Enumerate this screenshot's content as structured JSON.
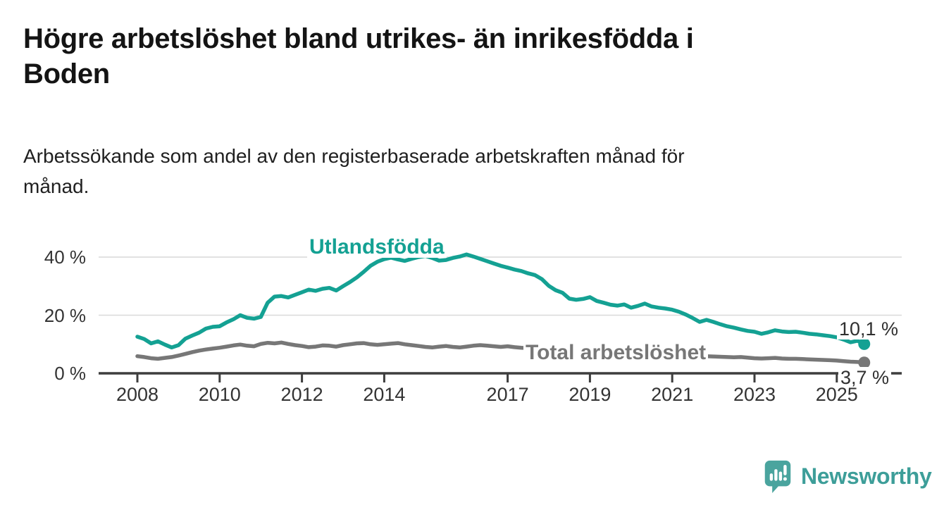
{
  "header": {
    "title": "Högre arbetslöshet bland utrikes- än inrikesfödda i Boden",
    "title_lines": [
      "Högre arbetslöshet bland utrikes- än inrikesfödda i",
      "Boden"
    ],
    "subtitle": "Arbetssökande som andel av den registerbaserade arbetskraften månad för månad.",
    "subtitle_lines": [
      "Arbetssökande som andel av den registerbaserade arbetskraften månad för",
      "månad."
    ]
  },
  "footer": {
    "logo_text": "Newsworthy",
    "logo_color": "#3d9e99",
    "logo_bubble_color": "#4aa49e"
  },
  "chart_data": {
    "type": "line",
    "title": "Högre arbetslöshet bland utrikes- än inrikesfödda i Boden",
    "subtitle": "Arbetssökande som andel av den registerbaserade arbetskraften månad för månad.",
    "unit": "%",
    "grid": "horizontal",
    "x_axis": {
      "start_year": 2008.0,
      "step_years": 0.16667,
      "end_year": 2025.67,
      "ticks": [
        2008,
        2010,
        2012,
        2014,
        2017,
        2019,
        2021,
        2023,
        2025
      ]
    },
    "y_axis": {
      "min": 0,
      "max": 44,
      "ticks": [
        {
          "value": 0,
          "label": "0 %"
        },
        {
          "value": 20,
          "label": "20 %"
        },
        {
          "value": 40,
          "label": "40 %"
        }
      ]
    },
    "style": {
      "background": "#ffffff",
      "axis_color": "#3d3d3d",
      "grid_color": "#d9d9d9",
      "tick_label_color": "#333333",
      "value_label_color": "#303030"
    },
    "series": [
      {
        "name": "Utlandsfödda",
        "color": "#14a193",
        "end_label": "10,1 %",
        "end_value": 10.1,
        "values": [
          12.6,
          11.8,
          10.3,
          11.0,
          9.9,
          8.9,
          9.7,
          11.9,
          13.0,
          14.0,
          15.4,
          16.0,
          16.2,
          17.5,
          18.6,
          20.0,
          19.1,
          18.8,
          19.4,
          24.3,
          26.4,
          26.6,
          26.1,
          27.0,
          27.9,
          28.8,
          28.4,
          29.1,
          29.4,
          28.5,
          30.0,
          31.4,
          33.0,
          34.9,
          37.0,
          38.4,
          39.3,
          39.8,
          39.2,
          38.7,
          39.4,
          40.0,
          40.4,
          39.7,
          38.8,
          39.0,
          39.7,
          40.2,
          40.9,
          40.2,
          39.4,
          38.6,
          37.8,
          37.0,
          36.4,
          35.7,
          35.2,
          34.4,
          33.8,
          32.4,
          30.1,
          28.6,
          27.7,
          25.7,
          25.3,
          25.6,
          26.2,
          24.9,
          24.3,
          23.6,
          23.3,
          23.7,
          22.6,
          23.2,
          24.0,
          23.0,
          22.6,
          22.3,
          21.9,
          21.2,
          20.2,
          19.0,
          17.7,
          18.4,
          17.7,
          16.9,
          16.2,
          15.7,
          15.1,
          14.6,
          14.3,
          13.6,
          14.1,
          14.8,
          14.4,
          14.2,
          14.3,
          14.0,
          13.6,
          13.4,
          13.1,
          12.8,
          12.4,
          11.6,
          10.7,
          11.2,
          10.1
        ]
      },
      {
        "name": "Total arbetslöshet",
        "color": "#777777",
        "end_label": "3,7 %",
        "end_value": 3.7,
        "values": [
          5.9,
          5.6,
          5.2,
          5.0,
          5.3,
          5.6,
          6.1,
          6.7,
          7.3,
          7.8,
          8.2,
          8.5,
          8.8,
          9.2,
          9.6,
          9.9,
          9.5,
          9.3,
          10.1,
          10.5,
          10.3,
          10.6,
          10.1,
          9.7,
          9.4,
          9.0,
          9.2,
          9.6,
          9.5,
          9.2,
          9.7,
          10.0,
          10.3,
          10.4,
          10.0,
          9.8,
          10.0,
          10.2,
          10.4,
          10.0,
          9.7,
          9.4,
          9.1,
          8.9,
          9.2,
          9.4,
          9.1,
          8.9,
          9.2,
          9.5,
          9.7,
          9.5,
          9.3,
          9.1,
          9.3,
          9.0,
          8.8,
          8.7,
          8.5,
          8.3,
          8.2,
          8.0,
          7.9,
          7.7,
          7.8,
          7.6,
          7.5,
          7.4,
          7.3,
          7.2,
          7.3,
          7.4,
          7.6,
          7.9,
          8.1,
          7.8,
          7.6,
          7.4,
          7.1,
          6.8,
          6.5,
          6.3,
          6.1,
          5.9,
          5.8,
          5.7,
          5.6,
          5.5,
          5.6,
          5.4,
          5.2,
          5.1,
          5.2,
          5.3,
          5.1,
          5.0,
          5.0,
          4.9,
          4.8,
          4.7,
          4.6,
          4.5,
          4.4,
          4.2,
          4.0,
          3.9,
          3.7
        ]
      }
    ]
  }
}
